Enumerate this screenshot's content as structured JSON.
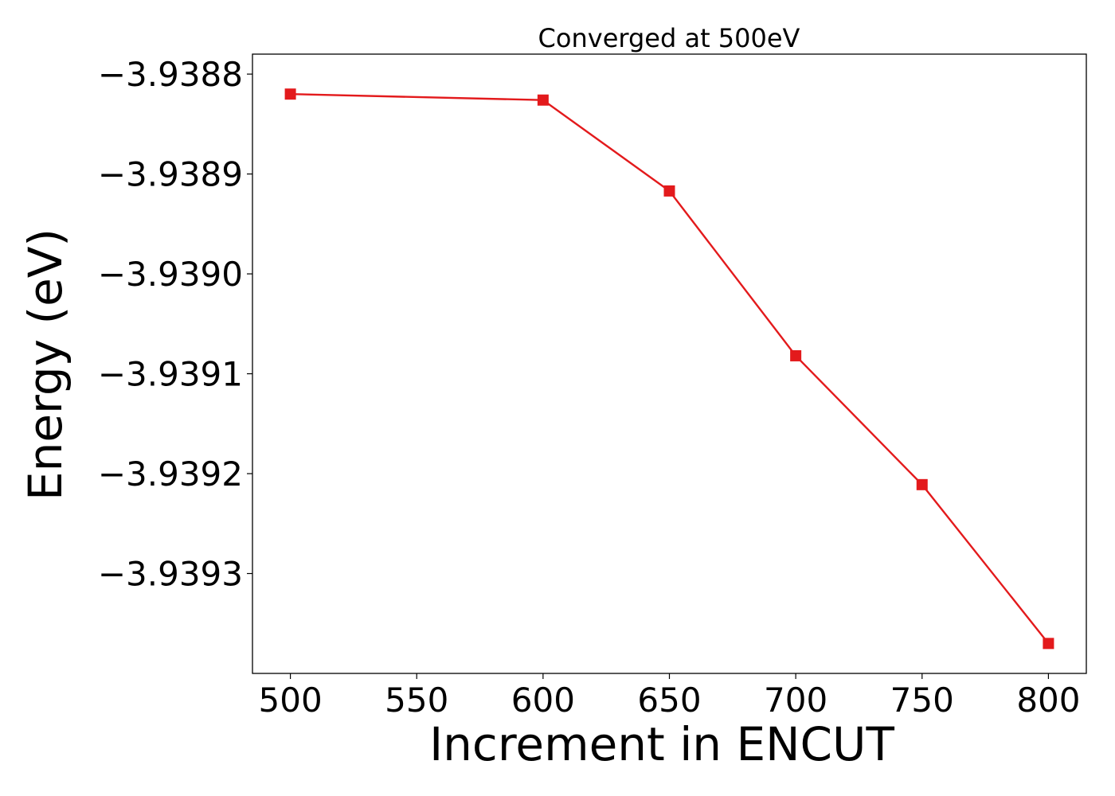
{
  "chart_data": {
    "type": "line",
    "title": "Converged at 500eV",
    "xlabel": "Increment in ENCUT",
    "ylabel": "Energy (eV)",
    "x": [
      500,
      600,
      650,
      700,
      750,
      800
    ],
    "series": [
      {
        "values": [
          -3.93882,
          -3.938826,
          -3.938917,
          -3.939082,
          -3.939211,
          -3.93937
        ],
        "color": "#e31a1c",
        "marker": "square"
      }
    ],
    "xlim": [
      485,
      815
    ],
    "ylim": [
      -3.9394,
      -3.93878
    ],
    "xticks": [
      500,
      550,
      600,
      650,
      700,
      750,
      800
    ],
    "xtick_labels": [
      "500",
      "550",
      "600",
      "650",
      "700",
      "750",
      "800"
    ],
    "yticks": [
      -3.9388,
      -3.9389,
      -3.939,
      -3.9391,
      -3.9392,
      -3.9393
    ],
    "ytick_labels": [
      "−3.9388",
      "−3.9389",
      "−3.9390",
      "−3.9391",
      "−3.9392",
      "−3.9393"
    ],
    "grid": false,
    "legend": "none"
  }
}
